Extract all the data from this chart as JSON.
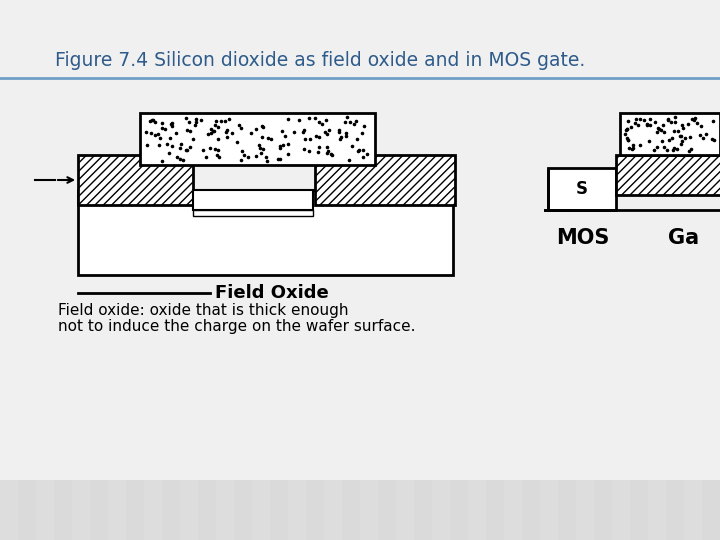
{
  "title": "Figure 7.4 Silicon dioxide as field oxide and in MOS gate.",
  "title_color": "#2E5B8A",
  "title_fontsize": 13.5,
  "slide_bg": "#CCCCCC",
  "content_bg": "#EEEEEE",
  "caption_line1": "Field oxide: oxide that is thick enough",
  "caption_line2": "not to induce the charge on the wafer surface.",
  "caption_fontsize": 11,
  "field_oxide_label": "Field Oxide",
  "mos_label": "MOS",
  "gate_label": "Ga",
  "s_label": "S",
  "stripe_color": "#C8C8C8",
  "white": "#FFFFFF",
  "black": "#000000"
}
